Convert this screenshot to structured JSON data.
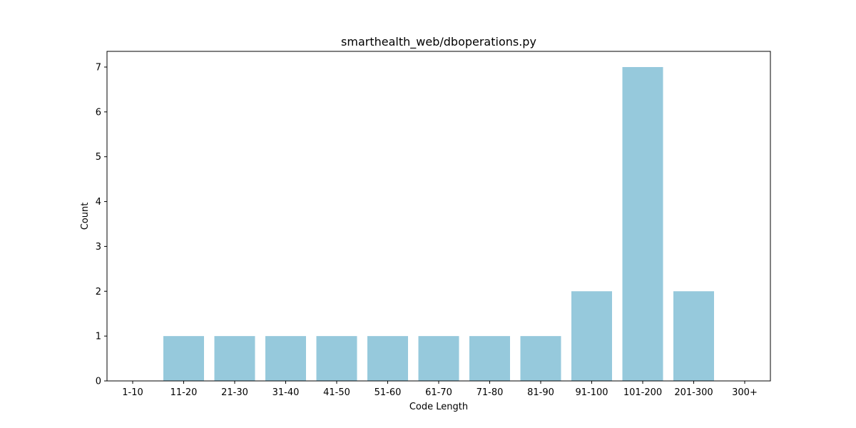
{
  "chart_data": {
    "type": "bar",
    "title": "smarthealth_web/dboperations.py",
    "xlabel": "Code Length",
    "ylabel": "Count",
    "categories": [
      "1-10",
      "11-20",
      "21-30",
      "31-40",
      "41-50",
      "51-60",
      "61-70",
      "71-80",
      "81-90",
      "91-100",
      "101-200",
      "201-300",
      "300+"
    ],
    "values": [
      0,
      1,
      1,
      1,
      1,
      1,
      1,
      1,
      1,
      2,
      7,
      2,
      0
    ],
    "ylim": [
      0,
      7.35
    ],
    "yticks": [
      "0",
      "1",
      "2",
      "3",
      "4",
      "5",
      "6",
      "7"
    ],
    "bar_color": "#96c9dc",
    "grid": false,
    "legend": "none"
  }
}
